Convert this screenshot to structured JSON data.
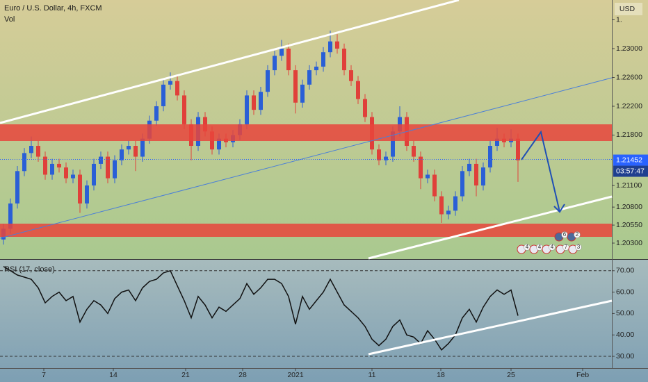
{
  "chart_data": [
    {
      "type": "candlestick",
      "title": "Euro / U.S. Dollar, 4h, FXCM",
      "subtitle": "Vol",
      "currency": "USD",
      "up_color": "#2a5fd6",
      "down_color": "#e0403a",
      "xlim": [
        -0.5,
        87.5
      ],
      "ylim": [
        1.20088,
        1.23675
      ],
      "yticks": [
        {
          "value": 1.234,
          "label": "1."
        },
        {
          "value": 1.23,
          "label": "1.23000"
        },
        {
          "value": 1.226,
          "label": "1.22600"
        },
        {
          "value": 1.222,
          "label": "1.22200"
        },
        {
          "value": 1.218,
          "label": "1.21800"
        },
        {
          "value": 1.211,
          "label": "1.21100"
        },
        {
          "value": 1.208,
          "label": "1.20800"
        },
        {
          "value": 1.2055,
          "label": "1.20550"
        },
        {
          "value": 1.203,
          "label": "1.20300"
        }
      ],
      "last_price": 1.21452,
      "countdown": "03:57:47",
      "event_counts": [
        4,
        4,
        4,
        7,
        3,
        6,
        2
      ],
      "ohlc": [
        [
          1.2035,
          1.2057,
          1.2028,
          1.205
        ],
        [
          1.205,
          1.2092,
          1.2043,
          1.2085
        ],
        [
          1.2085,
          1.2137,
          1.2078,
          1.213
        ],
        [
          1.213,
          1.2162,
          1.2123,
          1.2155
        ],
        [
          1.2155,
          1.2178,
          1.2148,
          1.2165
        ],
        [
          1.2165,
          1.2172,
          1.2143,
          1.215
        ],
        [
          1.215,
          1.2157,
          1.2118,
          1.2125
        ],
        [
          1.2125,
          1.2147,
          1.2118,
          1.214
        ],
        [
          1.214,
          1.2147,
          1.2128,
          1.2135
        ],
        [
          1.2135,
          1.2142,
          1.2113,
          1.212
        ],
        [
          1.212,
          1.2132,
          1.2113,
          1.2125
        ],
        [
          1.2125,
          1.2132,
          1.2072,
          1.2085
        ],
        [
          1.2085,
          1.2117,
          1.2078,
          1.211
        ],
        [
          1.211,
          1.2147,
          1.2103,
          1.214
        ],
        [
          1.214,
          1.2157,
          1.2133,
          1.215
        ],
        [
          1.215,
          1.2157,
          1.2113,
          1.212
        ],
        [
          1.212,
          1.2152,
          1.2113,
          1.2145
        ],
        [
          1.2145,
          1.2167,
          1.2138,
          1.216
        ],
        [
          1.216,
          1.2172,
          1.2153,
          1.2165
        ],
        [
          1.2165,
          1.2172,
          1.213,
          1.215
        ],
        [
          1.215,
          1.2182,
          1.2143,
          1.2175
        ],
        [
          1.2175,
          1.2207,
          1.2168,
          1.22
        ],
        [
          1.22,
          1.2227,
          1.2193,
          1.222
        ],
        [
          1.222,
          1.2257,
          1.2213,
          1.225
        ],
        [
          1.225,
          1.2267,
          1.2243,
          1.2255
        ],
        [
          1.2255,
          1.2262,
          1.2228,
          1.2235
        ],
        [
          1.2235,
          1.2242,
          1.2188,
          1.2195
        ],
        [
          1.2195,
          1.2202,
          1.2145,
          1.2165
        ],
        [
          1.2165,
          1.2212,
          1.2158,
          1.2205
        ],
        [
          1.2205,
          1.2212,
          1.2178,
          1.2185
        ],
        [
          1.2185,
          1.2192,
          1.2153,
          1.216
        ],
        [
          1.216,
          1.2182,
          1.2153,
          1.2175
        ],
        [
          1.2175,
          1.2182,
          1.2163,
          1.217
        ],
        [
          1.217,
          1.2187,
          1.2163,
          1.218
        ],
        [
          1.218,
          1.2202,
          1.2173,
          1.2195
        ],
        [
          1.2195,
          1.2242,
          1.2188,
          1.2235
        ],
        [
          1.2235,
          1.2242,
          1.2208,
          1.2215
        ],
        [
          1.2215,
          1.2247,
          1.2208,
          1.224
        ],
        [
          1.224,
          1.2277,
          1.2233,
          1.227
        ],
        [
          1.227,
          1.2297,
          1.2263,
          1.229
        ],
        [
          1.229,
          1.2312,
          1.2283,
          1.23
        ],
        [
          1.23,
          1.2307,
          1.2263,
          1.227
        ],
        [
          1.227,
          1.2277,
          1.221,
          1.2225
        ],
        [
          1.2225,
          1.2257,
          1.2218,
          1.225
        ],
        [
          1.225,
          1.2277,
          1.2243,
          1.227
        ],
        [
          1.227,
          1.2282,
          1.2263,
          1.2275
        ],
        [
          1.2275,
          1.2302,
          1.2268,
          1.2295
        ],
        [
          1.2295,
          1.2325,
          1.2288,
          1.231
        ],
        [
          1.231,
          1.232,
          1.2293,
          1.23
        ],
        [
          1.23,
          1.2307,
          1.2263,
          1.227
        ],
        [
          1.227,
          1.2277,
          1.2248,
          1.2255
        ],
        [
          1.2255,
          1.2262,
          1.2223,
          1.223
        ],
        [
          1.223,
          1.2237,
          1.2198,
          1.2205
        ],
        [
          1.2205,
          1.2212,
          1.2153,
          1.216
        ],
        [
          1.216,
          1.2167,
          1.2138,
          1.2145
        ],
        [
          1.2145,
          1.2157,
          1.2138,
          1.215
        ],
        [
          1.215,
          1.2192,
          1.2143,
          1.2185
        ],
        [
          1.2185,
          1.222,
          1.2178,
          1.2205
        ],
        [
          1.2205,
          1.2212,
          1.2158,
          1.2165
        ],
        [
          1.2165,
          1.2172,
          1.2143,
          1.215
        ],
        [
          1.215,
          1.2157,
          1.2105,
          1.212
        ],
        [
          1.212,
          1.2132,
          1.2113,
          1.2125
        ],
        [
          1.2125,
          1.2132,
          1.2088,
          1.2095
        ],
        [
          1.2095,
          1.2102,
          1.2058,
          1.207
        ],
        [
          1.207,
          1.2082,
          1.2063,
          1.2075
        ],
        [
          1.2075,
          1.2102,
          1.2068,
          1.2095
        ],
        [
          1.2095,
          1.2137,
          1.2088,
          1.213
        ],
        [
          1.213,
          1.2147,
          1.2123,
          1.214
        ],
        [
          1.214,
          1.2147,
          1.2095,
          1.211
        ],
        [
          1.211,
          1.2142,
          1.2103,
          1.2135
        ],
        [
          1.2135,
          1.2172,
          1.2128,
          1.2165
        ],
        [
          1.2165,
          1.219,
          1.2158,
          1.2175
        ],
        [
          1.2175,
          1.2182,
          1.2163,
          1.217
        ],
        [
          1.217,
          1.2188,
          1.2163,
          1.2175
        ],
        [
          1.2175,
          1.2182,
          1.2115,
          1.2145
        ]
      ]
    },
    {
      "type": "line",
      "title": "RSI (17, close)",
      "color": "#111111",
      "xlim": [
        -0.5,
        87.5
      ],
      "ylim": [
        24.5,
        74.8
      ],
      "yticks": [
        {
          "value": 70,
          "label": "70.00"
        },
        {
          "value": 60,
          "label": "60.00"
        },
        {
          "value": 50,
          "label": "50.00"
        },
        {
          "value": 40,
          "label": "40.00"
        },
        {
          "value": 30,
          "label": "30.00"
        }
      ],
      "xticks": [
        {
          "value": 5.8,
          "label": "7"
        },
        {
          "value": 15.8,
          "label": "14"
        },
        {
          "value": 26.2,
          "label": "21"
        },
        {
          "value": 34.4,
          "label": "28"
        },
        {
          "value": 42,
          "label": "2021"
        },
        {
          "value": 53,
          "label": "11"
        },
        {
          "value": 62.9,
          "label": "18"
        },
        {
          "value": 73,
          "label": "25"
        },
        {
          "value": 83.3,
          "label": "Feb"
        }
      ],
      "values": [
        72,
        70,
        68,
        67,
        66,
        62,
        55,
        58,
        60,
        56,
        58,
        46,
        52,
        56,
        54,
        50,
        57,
        60,
        61,
        56,
        62,
        65,
        66,
        69,
        70,
        63,
        56,
        48,
        58,
        54,
        48,
        53,
        51,
        54,
        57,
        64,
        59,
        62,
        66,
        66,
        64,
        58,
        45,
        58,
        52,
        56,
        60,
        66,
        60,
        54,
        51,
        48,
        44,
        38,
        35,
        38,
        44,
        47,
        40,
        39,
        36,
        42,
        38,
        33,
        36,
        40,
        48,
        52,
        46,
        53,
        58,
        61,
        59,
        61,
        49
      ]
    }
  ]
}
